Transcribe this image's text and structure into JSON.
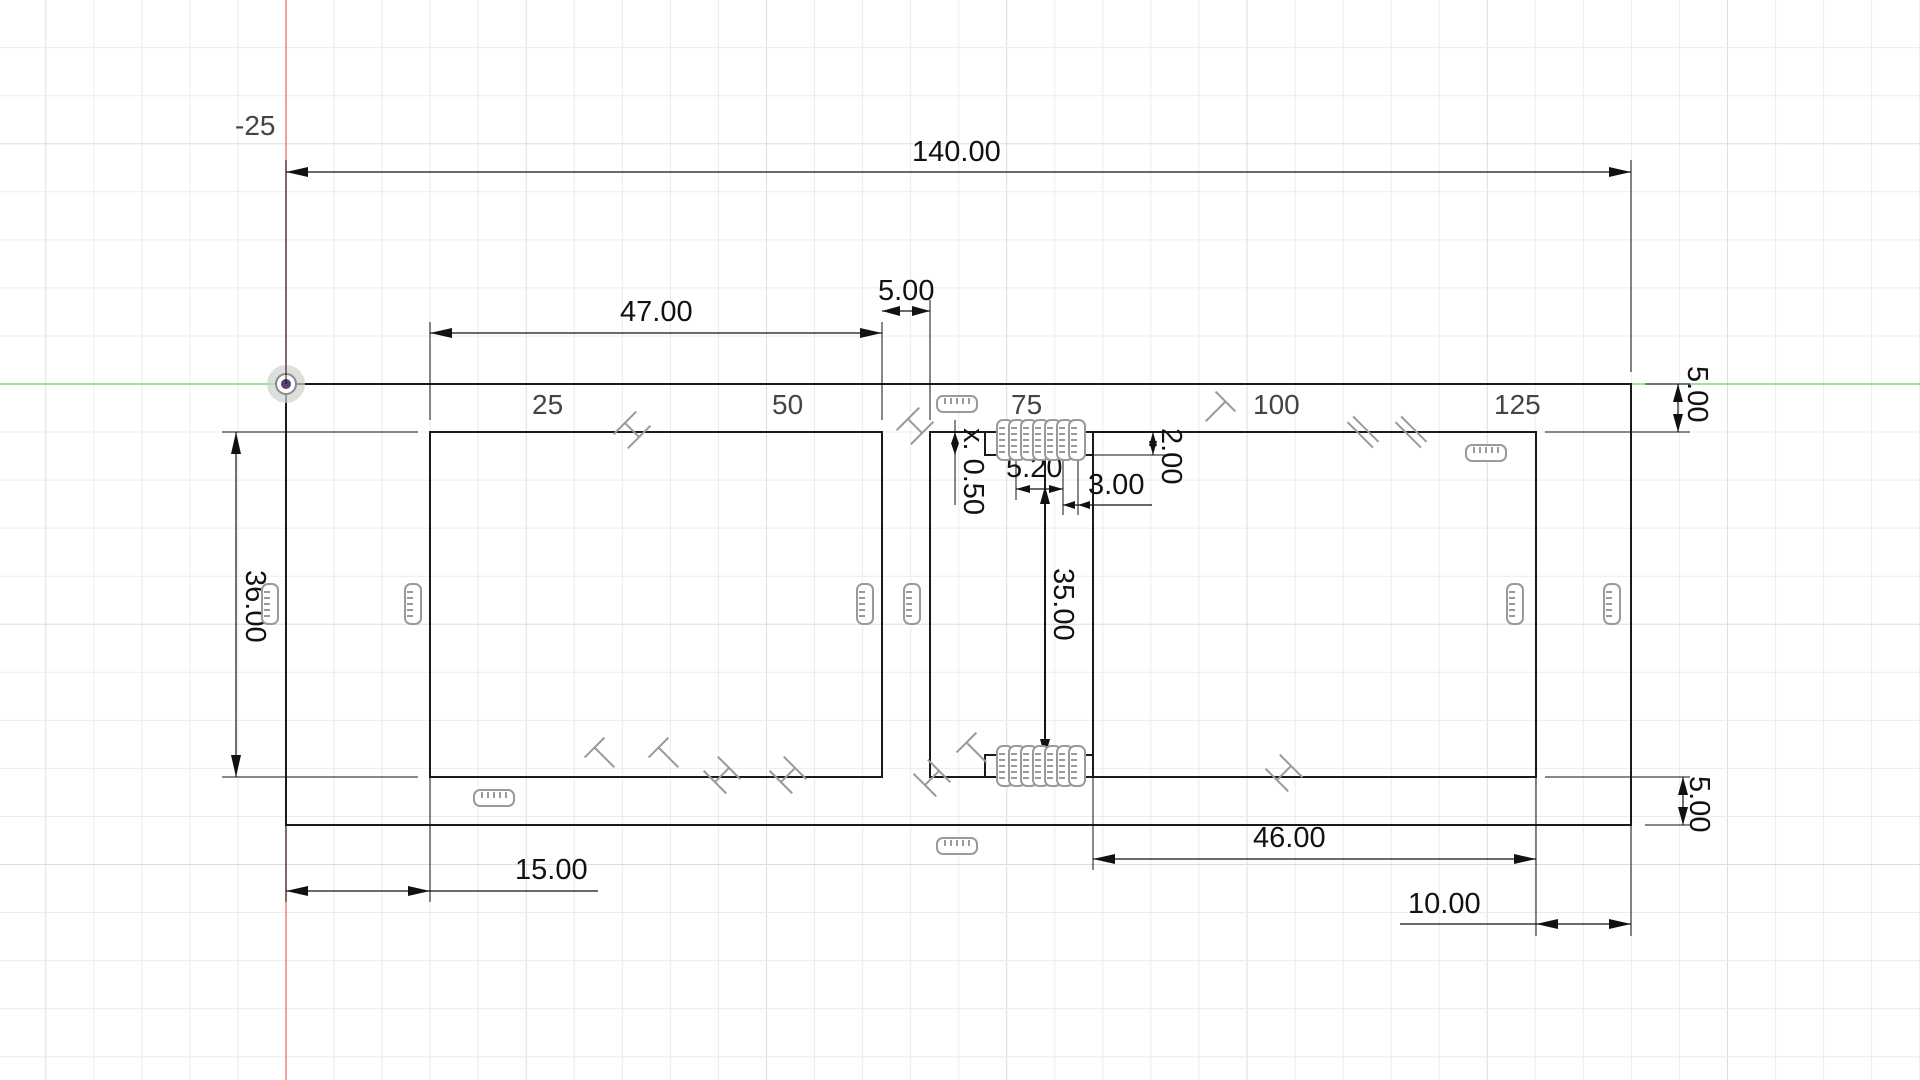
{
  "view": {
    "axis_colors": {
      "x_axis": "#7ed67e",
      "y_axis": "#f08080"
    },
    "grid_labels": [
      "-25",
      "25",
      "50",
      "75",
      "100",
      "125"
    ]
  },
  "sketch": {
    "origin_icon": "origin-point-icon",
    "dimensions": {
      "overall_width": "140.00",
      "left_pocket_width": "47.00",
      "gap_width": "5.00",
      "top_margin": "5.00",
      "bottom_margin": "5.00",
      "pocket_height": "36.00",
      "left_offset": "15.00",
      "right_offset": "10.00",
      "right_pocket_width": "46.00",
      "slot_height": "35.00",
      "tab_depth": "2.00",
      "tab_width": "3.00",
      "tab_spacing": "5.20",
      "tab_note": "x. 0.50"
    },
    "constraint_icons": [
      "horizontal-constraint-icon",
      "vertical-constraint-icon",
      "perpendicular-constraint-icon",
      "parallel-constraint-icon",
      "coincident-constraint-icon"
    ]
  }
}
